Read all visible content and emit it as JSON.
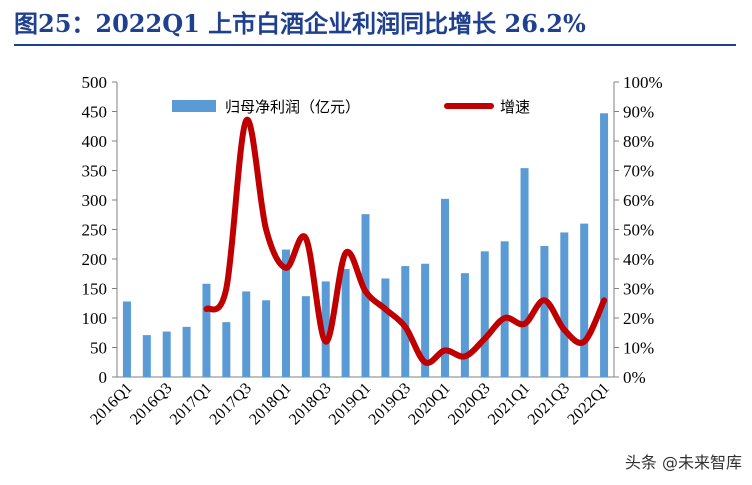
{
  "title": "图25：2022Q1 上市白酒企业利润同比增长 26.2%",
  "watermark": "头条 @未来智库",
  "chart_data": {
    "type": "bar",
    "title": "图25：2022Q1 上市白酒企业利润同比增长 26.2%",
    "categories": [
      "2016Q1",
      "2016Q2",
      "2016Q3",
      "2016Q4",
      "2017Q1",
      "2017Q2",
      "2017Q3",
      "2017Q4",
      "2018Q1",
      "2018Q2",
      "2018Q3",
      "2018Q4",
      "2019Q1",
      "2019Q2",
      "2019Q3",
      "2019Q4",
      "2020Q1",
      "2020Q2",
      "2020Q3",
      "2020Q4",
      "2021Q1",
      "2021Q2",
      "2021Q3",
      "2021Q4",
      "2022Q1"
    ],
    "x_tick_labels": [
      "2016Q1",
      "2016Q3",
      "2017Q1",
      "2017Q3",
      "2018Q1",
      "2018Q3",
      "2019Q1",
      "2019Q3",
      "2020Q1",
      "2020Q3",
      "2021Q1",
      "2021Q3",
      "2022Q1"
    ],
    "series": [
      {
        "name": "归母净利润（亿元）",
        "type": "bar",
        "axis": "left",
        "color": "#5b9bd5",
        "values": [
          128,
          71,
          77,
          85,
          158,
          93,
          145,
          130,
          216,
          137,
          162,
          183,
          276,
          167,
          188,
          192,
          302,
          176,
          213,
          230,
          354,
          222,
          245,
          260,
          447
        ]
      },
      {
        "name": "增速",
        "type": "line",
        "axis": "right",
        "color": "#c00000",
        "values": [
          null,
          null,
          null,
          null,
          0.23,
          0.3,
          0.87,
          0.5,
          0.37,
          0.47,
          0.12,
          0.42,
          0.29,
          0.23,
          0.17,
          0.05,
          0.09,
          0.07,
          0.13,
          0.2,
          0.18,
          0.26,
          0.16,
          0.12,
          0.26
        ]
      }
    ],
    "y_left": {
      "min": 0,
      "max": 500,
      "step": 50,
      "ticks": [
        "0",
        "50",
        "100",
        "150",
        "200",
        "250",
        "300",
        "350",
        "400",
        "450",
        "500"
      ]
    },
    "y_right": {
      "min": 0,
      "max": 1,
      "step": 0.1,
      "ticks": [
        "0%",
        "10%",
        "20%",
        "30%",
        "40%",
        "50%",
        "60%",
        "70%",
        "80%",
        "90%",
        "100%"
      ]
    },
    "legend": {
      "placement": "top",
      "items": [
        "归母净利润（亿元）",
        "增速"
      ]
    },
    "grid": false
  }
}
